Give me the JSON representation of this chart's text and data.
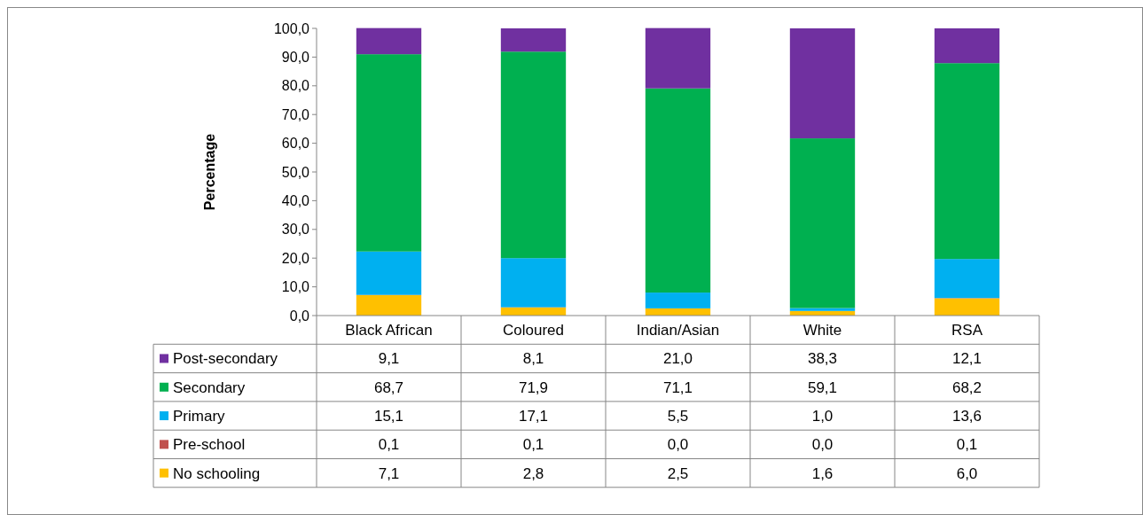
{
  "chart_data": {
    "type": "bar",
    "stacked": true,
    "ylabel": "Percentage",
    "categories": [
      "Black African",
      "Coloured",
      "Indian/Asian",
      "White",
      "RSA"
    ],
    "ylim": [
      0,
      100
    ],
    "yticks": [
      {
        "value": 0,
        "label": "0,0"
      },
      {
        "value": 10,
        "label": "10,0"
      },
      {
        "value": 20,
        "label": "20,0"
      },
      {
        "value": 30,
        "label": "30,0"
      },
      {
        "value": 40,
        "label": "40,0"
      },
      {
        "value": 50,
        "label": "50,0"
      },
      {
        "value": 60,
        "label": "60,0"
      },
      {
        "value": 70,
        "label": "70,0"
      },
      {
        "value": 80,
        "label": "80,0"
      },
      {
        "value": 90,
        "label": "90,0"
      },
      {
        "value": 100,
        "label": "100,0"
      }
    ],
    "legend": "bottom",
    "series": [
      {
        "name": "No schooling",
        "color": "#ffc000",
        "values": [
          7.1,
          2.8,
          2.5,
          1.6,
          6.0
        ],
        "value_labels": [
          "7,1",
          "2,8",
          "2,5",
          "1,6",
          "6,0"
        ]
      },
      {
        "name": "Pre-school",
        "color": "#c0504d",
        "values": [
          0.1,
          0.1,
          0.0,
          0.0,
          0.1
        ],
        "value_labels": [
          "0,1",
          "0,1",
          "0,0",
          "0,0",
          "0,1"
        ]
      },
      {
        "name": "Primary",
        "color": "#00b0f0",
        "values": [
          15.1,
          17.1,
          5.5,
          1.0,
          13.6
        ],
        "value_labels": [
          "15,1",
          "17,1",
          "5,5",
          "1,0",
          "13,6"
        ]
      },
      {
        "name": "Secondary",
        "color": "#00b050",
        "values": [
          68.7,
          71.9,
          71.1,
          59.1,
          68.2
        ],
        "value_labels": [
          "68,7",
          "71,9",
          "71,1",
          "59,1",
          "68,2"
        ]
      },
      {
        "name": "Post-secondary",
        "color": "#7030a0",
        "values": [
          9.1,
          8.1,
          21.0,
          38.3,
          12.1
        ],
        "value_labels": [
          "9,1",
          "8,1",
          "21,0",
          "38,3",
          "12,1"
        ]
      }
    ]
  }
}
